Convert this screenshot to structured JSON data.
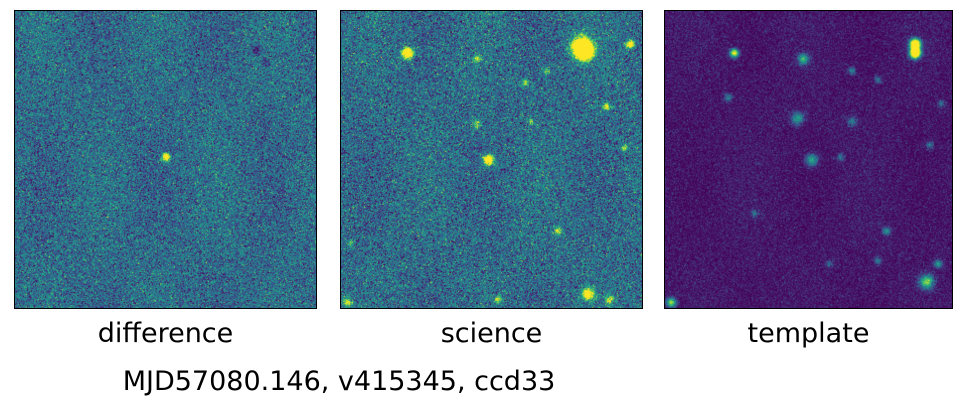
{
  "panels": [
    {
      "id": "difference",
      "label": "difference",
      "colormap": "viridis"
    },
    {
      "id": "science",
      "label": "science",
      "colormap": "viridis"
    },
    {
      "id": "template",
      "label": "template",
      "colormap": "viridis"
    }
  ],
  "caption": "MJD57080.146, v415345, ccd33",
  "colors": {
    "background": "#ffffff",
    "frame": "#000000",
    "colormap_low": "#440154",
    "colormap_mid": "#21918c",
    "colormap_high": "#fde725"
  }
}
